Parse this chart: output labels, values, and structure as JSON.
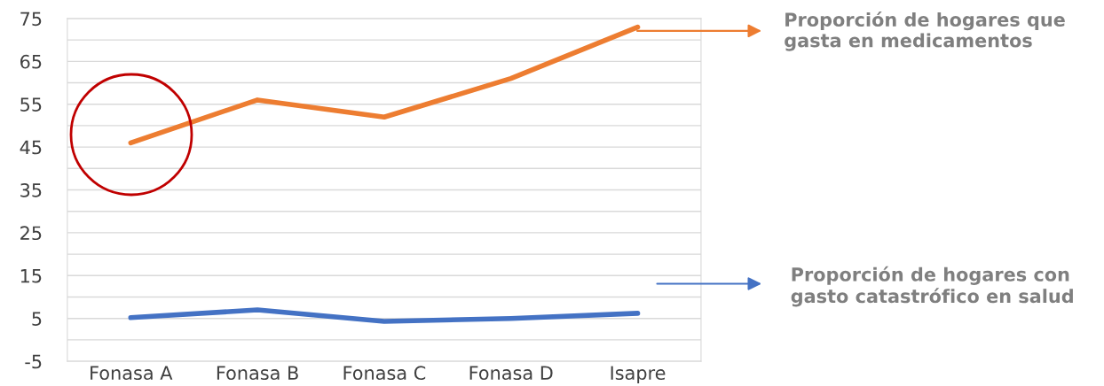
{
  "chart_data": {
    "type": "line",
    "categories": [
      "Fonasa A",
      "Fonasa B",
      "Fonasa C",
      "Fonasa D",
      "Isapre"
    ],
    "series": [
      {
        "name": "Proporción de hogares que gasta en medicamentos",
        "color": "#ed7d31",
        "values": [
          46,
          56,
          52,
          61,
          73
        ]
      },
      {
        "name": "Proporción de hogares con gasto catastrófico en salud",
        "color": "#4472c4",
        "values": [
          5.2,
          7.0,
          4.3,
          5.0,
          6.2
        ]
      }
    ],
    "ylim": [
      -5,
      75
    ],
    "yticks": [
      -5,
      {
        "value": 0,
        "label": null
      },
      5,
      {
        "value": 10,
        "label": null
      },
      15,
      {
        "value": 20,
        "label": null
      },
      25,
      {
        "value": 30,
        "label": null
      },
      35,
      {
        "value": 40,
        "label": null
      },
      45,
      {
        "value": 50,
        "label": null
      },
      55,
      {
        "value": 60,
        "label": null
      },
      65,
      {
        "value": 70,
        "label": null
      },
      75
    ],
    "grid": "y",
    "legend": "right",
    "marker": "none",
    "line_style": "solid"
  }
}
